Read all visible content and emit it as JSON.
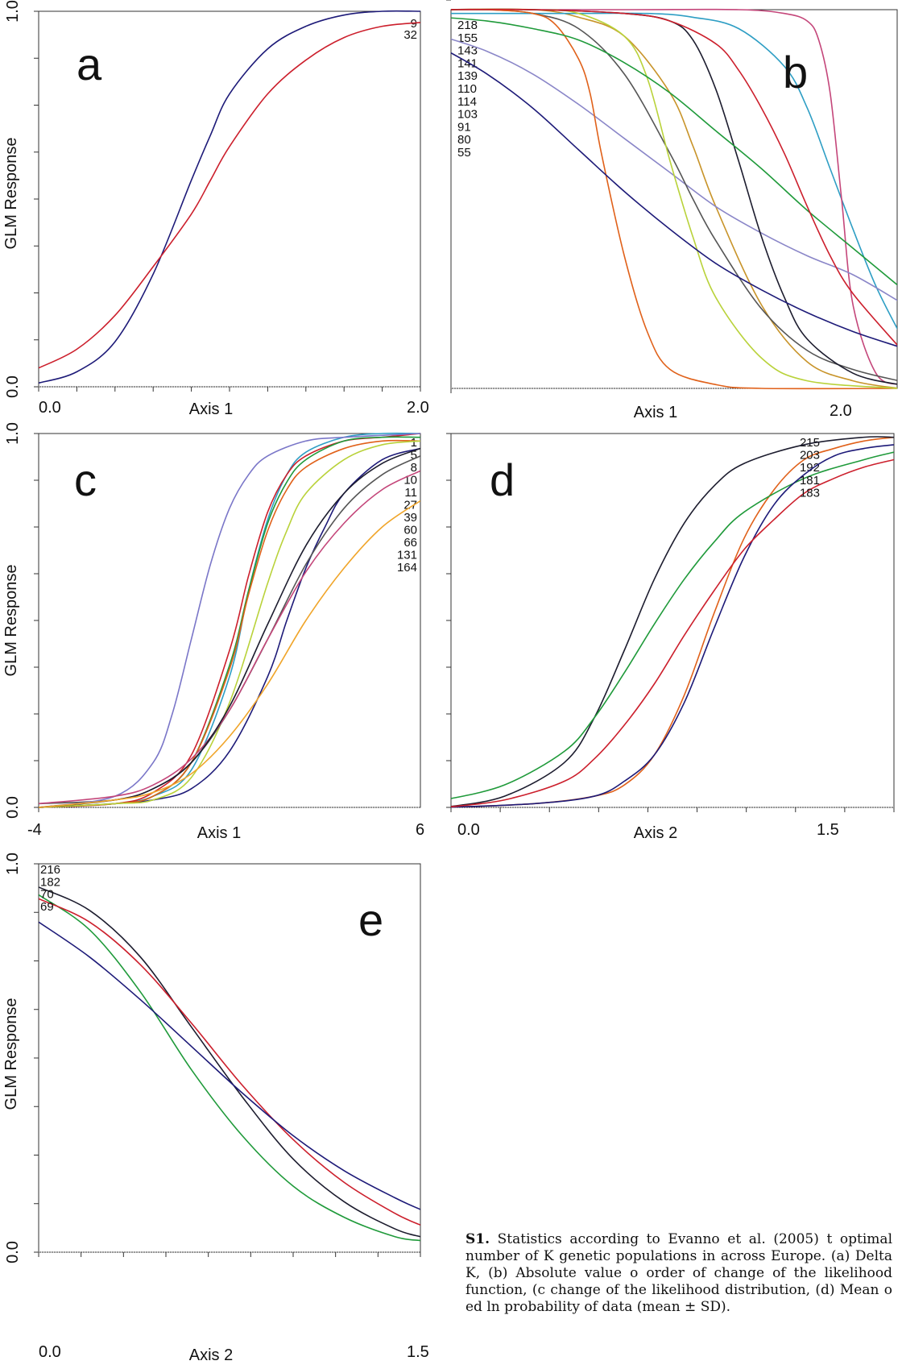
{
  "caption": {
    "label": "S1.",
    "text": "Statistics according to Evanno et al. (2005) t optimal number of K genetic populations in across Europe. (a) Delta K, (b) Absolute value o order of change of the likelihood function, (c change of the likelihood distribution, (d) Mean o ed ln probability of data (mean ± SD)."
  },
  "chart_data": [
    {
      "type": "line",
      "panel": "a",
      "xlabel": "Axis 1",
      "ylabel": "GLM Response",
      "xlim": [
        0.0,
        2.0
      ],
      "ylim": [
        0.0,
        1.0
      ],
      "xtick_labels": [
        "0.0",
        "2.0"
      ],
      "ytick_labels": [
        "0.0",
        "1.0"
      ],
      "series": [
        {
          "name": "9",
          "color": "#1d1a78",
          "x": [
            0.0,
            0.2,
            0.4,
            0.6,
            0.8,
            0.9,
            1.0,
            1.2,
            1.4,
            1.6,
            1.8,
            2.0
          ],
          "y": [
            0.01,
            0.04,
            0.12,
            0.3,
            0.55,
            0.67,
            0.78,
            0.9,
            0.96,
            0.99,
            1.0,
            1.0
          ]
        },
        {
          "name": "32",
          "color": "#cc1f2c",
          "x": [
            0.0,
            0.2,
            0.4,
            0.6,
            0.8,
            0.9,
            1.0,
            1.2,
            1.4,
            1.6,
            1.8,
            2.0
          ],
          "y": [
            0.05,
            0.1,
            0.19,
            0.32,
            0.46,
            0.55,
            0.64,
            0.78,
            0.87,
            0.93,
            0.96,
            0.97
          ]
        }
      ]
    },
    {
      "type": "line",
      "panel": "b",
      "xlabel": "Axis 1",
      "ylabel": "",
      "xlim": [
        0.0,
        2.0
      ],
      "ylim": [
        0.0,
        1.0
      ],
      "xtick_labels": [
        "2.0"
      ],
      "ytick_labels": [],
      "series": [
        {
          "name": "218",
          "color": "#c8942a",
          "x": [
            0.0,
            0.4,
            0.6,
            0.8,
            1.0,
            1.1,
            1.2,
            1.4,
            1.6,
            1.8,
            2.0
          ],
          "y": [
            1.0,
            1.0,
            0.98,
            0.93,
            0.78,
            0.64,
            0.48,
            0.22,
            0.07,
            0.02,
            0.0
          ]
        },
        {
          "name": "155",
          "color": "#2e9ec4",
          "x": [
            0.0,
            0.5,
            0.9,
            1.1,
            1.3,
            1.5,
            1.6,
            1.7,
            1.8,
            1.9,
            2.0
          ],
          "y": [
            0.99,
            0.99,
            0.99,
            0.98,
            0.95,
            0.85,
            0.74,
            0.58,
            0.42,
            0.27,
            0.15
          ]
        },
        {
          "name": "143",
          "color": "#c4467a",
          "x": [
            0.0,
            0.8,
            1.3,
            1.5,
            1.6,
            1.65,
            1.7,
            1.75,
            1.8,
            1.9,
            2.0
          ],
          "y": [
            1.0,
            1.0,
            1.0,
            0.99,
            0.97,
            0.92,
            0.78,
            0.5,
            0.22,
            0.04,
            0.01
          ]
        },
        {
          "name": "141",
          "color": "#8a86c8",
          "x": [
            0.0,
            0.2,
            0.4,
            0.6,
            0.8,
            1.0,
            1.2,
            1.4,
            1.6,
            1.8,
            2.0
          ],
          "y": [
            0.93,
            0.89,
            0.83,
            0.75,
            0.66,
            0.57,
            0.48,
            0.41,
            0.35,
            0.3,
            0.23
          ]
        },
        {
          "name": "139",
          "color": "#555555",
          "x": [
            0.0,
            0.2,
            0.4,
            0.6,
            0.8,
            1.0,
            1.1,
            1.2,
            1.4,
            1.6,
            1.8,
            2.0
          ],
          "y": [
            1.0,
            1.0,
            0.99,
            0.95,
            0.83,
            0.62,
            0.5,
            0.39,
            0.21,
            0.1,
            0.05,
            0.02
          ]
        },
        {
          "name": "110",
          "color": "#e0611a",
          "x": [
            0.0,
            0.2,
            0.4,
            0.5,
            0.6,
            0.65,
            0.7,
            0.8,
            0.9,
            1.0,
            1.2,
            1.4,
            2.0
          ],
          "y": [
            1.0,
            1.0,
            0.99,
            0.96,
            0.87,
            0.78,
            0.62,
            0.35,
            0.15,
            0.05,
            0.01,
            0.0,
            0.0
          ]
        },
        {
          "name": "114",
          "color": "#b9d23a",
          "x": [
            0.0,
            0.4,
            0.6,
            0.8,
            0.9,
            1.0,
            1.1,
            1.2,
            1.4,
            1.6,
            2.0
          ],
          "y": [
            1.0,
            1.0,
            0.99,
            0.93,
            0.82,
            0.6,
            0.4,
            0.24,
            0.08,
            0.02,
            0.0
          ]
        },
        {
          "name": "103",
          "color": "#1c1c2e",
          "x": [
            0.0,
            0.4,
            0.8,
            1.0,
            1.1,
            1.2,
            1.3,
            1.4,
            1.5,
            1.6,
            1.8,
            2.0
          ],
          "y": [
            1.0,
            1.0,
            0.99,
            0.97,
            0.92,
            0.79,
            0.6,
            0.4,
            0.24,
            0.13,
            0.04,
            0.01
          ]
        },
        {
          "name": "91",
          "color": "#1f9a3a",
          "x": [
            0.0,
            0.2,
            0.4,
            0.6,
            0.8,
            1.0,
            1.2,
            1.4,
            1.6,
            1.8,
            2.0
          ],
          "y": [
            0.98,
            0.97,
            0.95,
            0.92,
            0.86,
            0.78,
            0.68,
            0.58,
            0.47,
            0.37,
            0.27
          ]
        },
        {
          "name": "80",
          "color": "#cc1f2c",
          "x": [
            0.0,
            0.4,
            0.8,
            1.0,
            1.2,
            1.3,
            1.4,
            1.5,
            1.6,
            1.7,
            1.8,
            2.0
          ],
          "y": [
            1.0,
            1.0,
            0.99,
            0.97,
            0.91,
            0.84,
            0.74,
            0.62,
            0.48,
            0.35,
            0.25,
            0.11
          ]
        },
        {
          "name": "55",
          "color": "#1d1a78",
          "x": [
            0.0,
            0.2,
            0.4,
            0.6,
            0.8,
            1.0,
            1.2,
            1.4,
            1.6,
            1.8,
            2.0
          ],
          "y": [
            0.9,
            0.83,
            0.74,
            0.63,
            0.52,
            0.42,
            0.33,
            0.26,
            0.2,
            0.15,
            0.11
          ]
        }
      ]
    },
    {
      "type": "line",
      "panel": "c",
      "xlabel": "Axis 1",
      "ylabel": "GLM Response",
      "xlim": [
        -4,
        6
      ],
      "ylim": [
        0.0,
        1.0
      ],
      "xtick_labels": [
        "-4",
        "6"
      ],
      "ytick_labels": [
        "0.0",
        "1.0"
      ],
      "series": [
        {
          "name": "1",
          "color": "#2e9ec4",
          "x": [
            -4,
            -2,
            -1,
            0,
            1,
            1.5,
            2,
            2.5,
            3,
            4,
            5,
            6
          ],
          "y": [
            0.0,
            0.01,
            0.03,
            0.1,
            0.35,
            0.58,
            0.77,
            0.89,
            0.95,
            0.99,
            1.0,
            1.0
          ]
        },
        {
          "name": "5",
          "color": "#cc1f2c",
          "x": [
            -4,
            -2,
            -1,
            0,
            1,
            1.5,
            2,
            2.5,
            3,
            4,
            5,
            6
          ],
          "y": [
            0.0,
            0.01,
            0.04,
            0.14,
            0.42,
            0.62,
            0.79,
            0.89,
            0.94,
            0.98,
            0.99,
            1.0
          ]
        },
        {
          "name": "8",
          "color": "#1f9a3a",
          "x": [
            -4,
            -2,
            -1,
            0,
            1,
            1.5,
            2,
            2.5,
            3,
            4,
            5,
            6
          ],
          "y": [
            0.0,
            0.01,
            0.03,
            0.12,
            0.38,
            0.58,
            0.76,
            0.87,
            0.93,
            0.98,
            0.99,
            0.99
          ]
        },
        {
          "name": "10",
          "color": "#1d1a78",
          "x": [
            -4,
            -2,
            -1,
            0,
            1,
            2,
            2.5,
            3,
            3.5,
            4,
            5,
            6
          ],
          "y": [
            0.0,
            0.01,
            0.02,
            0.05,
            0.15,
            0.35,
            0.5,
            0.64,
            0.75,
            0.84,
            0.93,
            0.96
          ]
        },
        {
          "name": "11",
          "color": "#e0611a",
          "x": [
            -4,
            -2,
            -1,
            0,
            1,
            1.5,
            2,
            2.5,
            3,
            4,
            5,
            6
          ],
          "y": [
            0.0,
            0.01,
            0.03,
            0.12,
            0.37,
            0.57,
            0.74,
            0.85,
            0.91,
            0.96,
            0.98,
            0.98
          ]
        },
        {
          "name": "27",
          "color": "#b9d23a",
          "x": [
            -4,
            -2,
            -1,
            0,
            1,
            2,
            2.5,
            3,
            4,
            5,
            6
          ],
          "y": [
            0.0,
            0.01,
            0.02,
            0.08,
            0.28,
            0.6,
            0.74,
            0.84,
            0.93,
            0.97,
            0.98
          ]
        },
        {
          "name": "39",
          "color": "#555555",
          "x": [
            -4,
            -2,
            -1,
            0,
            1,
            2,
            3,
            4,
            5,
            6
          ],
          "y": [
            0.01,
            0.02,
            0.05,
            0.12,
            0.26,
            0.45,
            0.65,
            0.8,
            0.89,
            0.94
          ]
        },
        {
          "name": "60",
          "color": "#7a76c8",
          "x": [
            -4,
            -2,
            -1,
            -0.5,
            0,
            0.5,
            1,
            1.5,
            2,
            3,
            4,
            6
          ],
          "y": [
            0.0,
            0.03,
            0.12,
            0.25,
            0.45,
            0.65,
            0.8,
            0.89,
            0.94,
            0.98,
            0.99,
            1.0
          ]
        },
        {
          "name": "66",
          "color": "#c4467a",
          "x": [
            -4,
            -2,
            -1,
            0,
            1,
            2,
            3,
            4,
            5,
            6
          ],
          "y": [
            0.01,
            0.03,
            0.06,
            0.13,
            0.26,
            0.45,
            0.63,
            0.76,
            0.85,
            0.9
          ]
        },
        {
          "name": "131",
          "color": "#1c1c2e",
          "x": [
            -4,
            -2,
            -1,
            0,
            1,
            2,
            3,
            4,
            5,
            6
          ],
          "y": [
            0.0,
            0.02,
            0.05,
            0.12,
            0.27,
            0.49,
            0.7,
            0.84,
            0.92,
            0.96
          ]
        },
        {
          "name": "164",
          "color": "#f0a52a",
          "x": [
            -4,
            -2,
            -1,
            0,
            1,
            2,
            3,
            4,
            5,
            6
          ],
          "y": [
            0.0,
            0.02,
            0.04,
            0.09,
            0.19,
            0.33,
            0.5,
            0.64,
            0.75,
            0.82
          ]
        }
      ]
    },
    {
      "type": "line",
      "panel": "d",
      "xlabel": "Axis 2",
      "ylabel": "",
      "xlim": [
        0.0,
        1.5
      ],
      "ylim": [
        0.0,
        1.0
      ],
      "xtick_labels": [
        "0.0",
        "1.5"
      ],
      "ytick_labels": [],
      "series": [
        {
          "name": "215",
          "color": "#e0611a",
          "x": [
            0.0,
            0.3,
            0.5,
            0.6,
            0.7,
            0.8,
            0.9,
            1.0,
            1.1,
            1.2,
            1.3,
            1.4,
            1.5
          ],
          "y": [
            0.0,
            0.01,
            0.03,
            0.06,
            0.14,
            0.3,
            0.52,
            0.72,
            0.85,
            0.93,
            0.96,
            0.98,
            0.99
          ]
        },
        {
          "name": "203",
          "color": "#1c1c2e",
          "x": [
            0.0,
            0.2,
            0.4,
            0.5,
            0.6,
            0.7,
            0.8,
            0.9,
            1.0,
            1.2,
            1.4,
            1.5
          ],
          "y": [
            0.0,
            0.03,
            0.12,
            0.24,
            0.42,
            0.61,
            0.76,
            0.86,
            0.92,
            0.97,
            0.99,
            0.99
          ]
        },
        {
          "name": "192",
          "color": "#1f9a3a",
          "x": [
            0.0,
            0.2,
            0.4,
            0.5,
            0.6,
            0.7,
            0.8,
            0.9,
            1.0,
            1.2,
            1.4,
            1.5
          ],
          "y": [
            0.02,
            0.06,
            0.15,
            0.24,
            0.36,
            0.49,
            0.61,
            0.71,
            0.79,
            0.88,
            0.93,
            0.95
          ]
        },
        {
          "name": "181",
          "color": "#1d1a78",
          "x": [
            0.0,
            0.3,
            0.5,
            0.6,
            0.7,
            0.8,
            0.9,
            1.0,
            1.1,
            1.2,
            1.3,
            1.4,
            1.5
          ],
          "y": [
            0.0,
            0.01,
            0.03,
            0.07,
            0.14,
            0.28,
            0.48,
            0.67,
            0.81,
            0.89,
            0.94,
            0.96,
            0.97
          ]
        },
        {
          "name": "183",
          "color": "#cc1f2c",
          "x": [
            0.0,
            0.2,
            0.4,
            0.5,
            0.6,
            0.7,
            0.8,
            0.9,
            1.0,
            1.1,
            1.2,
            1.3,
            1.4,
            1.5
          ],
          "y": [
            0.0,
            0.02,
            0.07,
            0.13,
            0.22,
            0.33,
            0.46,
            0.58,
            0.69,
            0.77,
            0.84,
            0.88,
            0.91,
            0.93
          ]
        }
      ]
    },
    {
      "type": "line",
      "panel": "e",
      "xlabel": "Axis 2",
      "ylabel": "GLM Response",
      "xlim": [
        0.0,
        1.5
      ],
      "ylim": [
        0.0,
        1.0
      ],
      "xtick_labels": [
        "0.0",
        "1.5"
      ],
      "ytick_labels": [
        "0.0",
        "1.0"
      ],
      "series": [
        {
          "name": "216",
          "color": "#1c1c2e",
          "x": [
            0.0,
            0.2,
            0.4,
            0.6,
            0.8,
            1.0,
            1.2,
            1.4,
            1.5
          ],
          "y": [
            0.94,
            0.88,
            0.76,
            0.58,
            0.4,
            0.24,
            0.13,
            0.06,
            0.04
          ]
        },
        {
          "name": "182",
          "color": "#1f9a3a",
          "x": [
            0.0,
            0.2,
            0.4,
            0.6,
            0.8,
            1.0,
            1.2,
            1.4,
            1.5
          ],
          "y": [
            0.92,
            0.83,
            0.67,
            0.47,
            0.3,
            0.17,
            0.09,
            0.04,
            0.03
          ]
        },
        {
          "name": "70",
          "color": "#cc1f2c",
          "x": [
            0.0,
            0.2,
            0.4,
            0.6,
            0.8,
            1.0,
            1.2,
            1.4,
            1.5
          ],
          "y": [
            0.91,
            0.85,
            0.74,
            0.59,
            0.43,
            0.29,
            0.18,
            0.1,
            0.07
          ]
        },
        {
          "name": "69",
          "color": "#1d1a78",
          "x": [
            0.0,
            0.2,
            0.4,
            0.6,
            0.8,
            1.0,
            1.2,
            1.4,
            1.5
          ],
          "y": [
            0.85,
            0.76,
            0.65,
            0.53,
            0.41,
            0.3,
            0.21,
            0.14,
            0.11
          ]
        }
      ]
    }
  ]
}
